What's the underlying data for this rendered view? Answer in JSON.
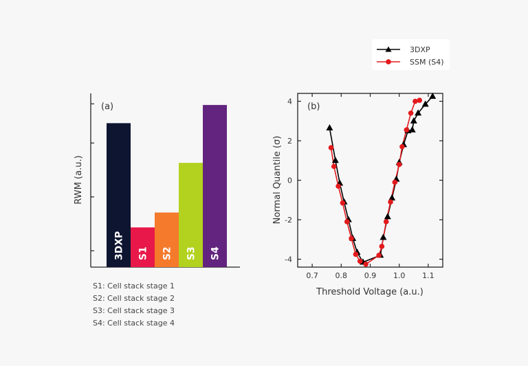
{
  "chart_data": [
    {
      "type": "bar",
      "panel_label": "(a)",
      "ylabel": "RWM (a.u.)",
      "categories": [
        "3DXP",
        "S1",
        "S2",
        "S3",
        "S4"
      ],
      "values": [
        0.87,
        0.24,
        0.33,
        0.63,
        0.98
      ],
      "ylim": [
        0,
        1.05
      ],
      "colors": [
        "#0d1530",
        "#e8194a",
        "#f57a2c",
        "#b3d11f",
        "#62247e"
      ],
      "notes": [
        "S1: Cell stack stage 1",
        "S2: Cell stack stage 2",
        "S3: Cell stack stage 3",
        "S4: Cell stack stage 4"
      ]
    },
    {
      "type": "line",
      "panel_label": "(b)",
      "xlabel": "Threshold Voltage (a.u.)",
      "ylabel": "Normal Quantile (σ)",
      "xlim": [
        0.65,
        1.15
      ],
      "ylim": [
        -4.4,
        4.4
      ],
      "xticks": [
        "0.7",
        "0.8",
        "0.9",
        "1.0",
        "1.1"
      ],
      "yticks": [
        "4",
        "2",
        "0",
        "-2",
        "-4"
      ],
      "legend_position": "top-right",
      "series": [
        {
          "name": "3DXP",
          "color": "#000000",
          "marker": "triangle",
          "points": [
            [
              0.76,
              2.65
            ],
            [
              0.78,
              1.0
            ],
            [
              0.795,
              -0.15
            ],
            [
              0.81,
              -1.1
            ],
            [
              0.825,
              -2.0
            ],
            [
              0.84,
              -2.95
            ],
            [
              0.855,
              -3.65
            ],
            [
              0.875,
              -4.15
            ],
            [
              0.935,
              -3.8
            ],
            [
              0.945,
              -2.9
            ],
            [
              0.96,
              -1.85
            ],
            [
              0.975,
              -0.9
            ],
            [
              0.99,
              0.05
            ],
            [
              1.0,
              0.9
            ],
            [
              1.015,
              1.8
            ],
            [
              1.03,
              2.5
            ],
            [
              1.045,
              2.55
            ],
            [
              1.05,
              3.0
            ],
            [
              1.065,
              3.4
            ],
            [
              1.09,
              3.85
            ],
            [
              1.115,
              4.25
            ]
          ]
        },
        {
          "name": "SSM (S4)",
          "color": "#e31a1c",
          "marker": "circle",
          "points": [
            [
              0.765,
              1.65
            ],
            [
              0.775,
              0.7
            ],
            [
              0.79,
              -0.3
            ],
            [
              0.805,
              -1.15
            ],
            [
              0.82,
              -2.1
            ],
            [
              0.835,
              -2.95
            ],
            [
              0.85,
              -3.75
            ],
            [
              0.865,
              -4.1
            ],
            [
              0.885,
              -4.25
            ],
            [
              0.93,
              -3.8
            ],
            [
              0.94,
              -3.35
            ],
            [
              0.955,
              -2.1
            ],
            [
              0.97,
              -1.1
            ],
            [
              0.985,
              -0.1
            ],
            [
              1.0,
              0.8
            ],
            [
              1.01,
              1.7
            ],
            [
              1.025,
              2.55
            ],
            [
              1.04,
              3.4
            ],
            [
              1.055,
              4.0
            ],
            [
              1.07,
              4.05
            ]
          ]
        }
      ]
    }
  ]
}
